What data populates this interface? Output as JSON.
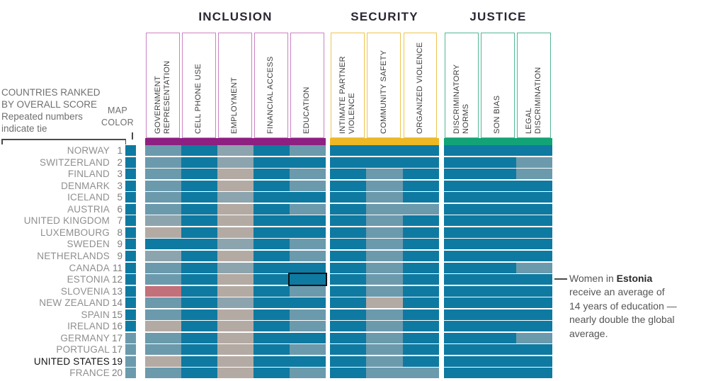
{
  "palette": {
    "teal": "#0e7aa1",
    "blue": "#6b9aad",
    "gray": "#8ca4ae",
    "tan": "#b4aaa4",
    "pink": "#c2707a"
  },
  "legend": {
    "note_lines": [
      "COUNTRIES RANKED",
      "BY OVERALL SCORE",
      "Repeated numbers",
      "indicate tie"
    ],
    "map_label_lines": [
      "MAP",
      "COLOR"
    ]
  },
  "annotation": {
    "pre": "Women in ",
    "bold": "Estonia",
    "rest": " receive an average of 14 years of education —nearly double the global average."
  },
  "chart_data": {
    "type": "heatmap",
    "note": "Countries ranked by overall score; cell shade encodes performance tier per indicator",
    "groups": [
      {
        "title": "INCLUSION",
        "bar_color": "#8e2082",
        "border_color": "#cb82c2",
        "columns": [
          "GOVERNMENT REPRESENTATION",
          "CELL PHONE USE",
          "EMPLOYMENT",
          "FINANCIAL ACCESS",
          "EDUCATION"
        ]
      },
      {
        "title": "SECURITY",
        "bar_color": "#edb824",
        "border_color": "#eec44f",
        "columns": [
          "INTIMATE PARTNER VIOLENCE",
          "COMMUNITY SAFETY",
          "ORGANIZED VIOLENCE"
        ]
      },
      {
        "title": "JUSTICE",
        "bar_color": "#12a377",
        "border_color": "#53b795",
        "columns": [
          "DISCRIMINATORY NORMS",
          "SON BIAS",
          "LEGAL DISCRIMINATION"
        ]
      }
    ],
    "rows": [
      {
        "country": "NORWAY",
        "rank": "1",
        "map": "teal",
        "emphasis": false,
        "cells": [
          "blue",
          "teal",
          "gray",
          "teal",
          "blue",
          "teal",
          "teal",
          "teal",
          "teal",
          "teal",
          "teal"
        ]
      },
      {
        "country": "SWITZERLAND",
        "rank": "2",
        "map": "teal",
        "emphasis": false,
        "cells": [
          "blue",
          "teal",
          "gray",
          "teal",
          "teal",
          "teal",
          "teal",
          "teal",
          "teal",
          "teal",
          "blue"
        ]
      },
      {
        "country": "FINLAND",
        "rank": "3",
        "map": "teal",
        "emphasis": false,
        "cells": [
          "blue",
          "teal",
          "tan",
          "teal",
          "blue",
          "teal",
          "blue",
          "teal",
          "teal",
          "teal",
          "blue"
        ]
      },
      {
        "country": "DENMARK",
        "rank": "3",
        "map": "teal",
        "emphasis": false,
        "cells": [
          "blue",
          "teal",
          "tan",
          "teal",
          "blue",
          "teal",
          "blue",
          "teal",
          "teal",
          "teal",
          "teal"
        ]
      },
      {
        "country": "ICELAND",
        "rank": "5",
        "map": "teal",
        "emphasis": false,
        "cells": [
          "blue",
          "teal",
          "gray",
          "teal",
          "teal",
          "teal",
          "blue",
          "teal",
          "teal",
          "teal",
          "teal"
        ]
      },
      {
        "country": "AUSTRIA",
        "rank": "6",
        "map": "teal",
        "emphasis": false,
        "cells": [
          "blue",
          "teal",
          "tan",
          "teal",
          "blue",
          "teal",
          "blue",
          "blue",
          "teal",
          "teal",
          "teal"
        ]
      },
      {
        "country": "UNITED KINGDOM",
        "rank": "7",
        "map": "teal",
        "emphasis": false,
        "cells": [
          "gray",
          "teal",
          "tan",
          "teal",
          "teal",
          "teal",
          "blue",
          "teal",
          "teal",
          "teal",
          "teal"
        ]
      },
      {
        "country": "LUXEMBOURG",
        "rank": "8",
        "map": "teal",
        "emphasis": false,
        "cells": [
          "tan",
          "teal",
          "tan",
          "teal",
          "teal",
          "teal",
          "blue",
          "teal",
          "teal",
          "teal",
          "teal"
        ]
      },
      {
        "country": "SWEDEN",
        "rank": "9",
        "map": "teal",
        "emphasis": false,
        "cells": [
          "teal",
          "teal",
          "gray",
          "teal",
          "blue",
          "teal",
          "blue",
          "teal",
          "teal",
          "teal",
          "teal"
        ]
      },
      {
        "country": "NETHERLANDS",
        "rank": "9",
        "map": "teal",
        "emphasis": false,
        "cells": [
          "gray",
          "teal",
          "tan",
          "teal",
          "blue",
          "teal",
          "blue",
          "teal",
          "teal",
          "teal",
          "teal"
        ]
      },
      {
        "country": "CANADA",
        "rank": "11",
        "map": "teal",
        "emphasis": false,
        "cells": [
          "blue",
          "teal",
          "gray",
          "teal",
          "teal",
          "teal",
          "blue",
          "teal",
          "teal",
          "teal",
          "blue"
        ]
      },
      {
        "country": "ESTONIA",
        "rank": "12",
        "map": "teal",
        "emphasis": false,
        "cells": [
          "blue",
          "teal",
          "tan",
          "teal",
          "teal",
          "teal",
          "blue",
          "teal",
          "teal",
          "teal",
          "teal"
        ]
      },
      {
        "country": "SLOVENIA",
        "rank": "13",
        "map": "teal",
        "emphasis": false,
        "cells": [
          "pink",
          "teal",
          "tan",
          "teal",
          "blue",
          "teal",
          "blue",
          "teal",
          "teal",
          "teal",
          "teal"
        ]
      },
      {
        "country": "NEW ZEALAND",
        "rank": "14",
        "map": "teal",
        "emphasis": false,
        "cells": [
          "blue",
          "teal",
          "gray",
          "teal",
          "teal",
          "teal",
          "tan",
          "teal",
          "teal",
          "teal",
          "teal"
        ]
      },
      {
        "country": "SPAIN",
        "rank": "15",
        "map": "teal",
        "emphasis": false,
        "cells": [
          "blue",
          "teal",
          "tan",
          "teal",
          "blue",
          "teal",
          "blue",
          "teal",
          "teal",
          "teal",
          "teal"
        ]
      },
      {
        "country": "IRELAND",
        "rank": "16",
        "map": "teal",
        "emphasis": false,
        "cells": [
          "tan",
          "teal",
          "tan",
          "teal",
          "blue",
          "teal",
          "blue",
          "teal",
          "teal",
          "teal",
          "teal"
        ]
      },
      {
        "country": "GERMANY",
        "rank": "17",
        "map": "blue",
        "emphasis": false,
        "cells": [
          "blue",
          "teal",
          "tan",
          "teal",
          "teal",
          "teal",
          "blue",
          "teal",
          "teal",
          "teal",
          "blue"
        ]
      },
      {
        "country": "PORTUGAL",
        "rank": "17",
        "map": "blue",
        "emphasis": false,
        "cells": [
          "blue",
          "teal",
          "tan",
          "teal",
          "blue",
          "teal",
          "blue",
          "teal",
          "teal",
          "teal",
          "teal"
        ]
      },
      {
        "country": "UNITED STATES",
        "rank": "19",
        "map": "blue",
        "emphasis": true,
        "cells": [
          "tan",
          "teal",
          "tan",
          "teal",
          "teal",
          "teal",
          "blue",
          "teal",
          "teal",
          "teal",
          "teal"
        ]
      },
      {
        "country": "FRANCE",
        "rank": "20",
        "map": "blue",
        "emphasis": false,
        "cells": [
          "blue",
          "teal",
          "tan",
          "teal",
          "blue",
          "teal",
          "blue",
          "blue",
          "teal",
          "teal",
          "teal"
        ]
      }
    ],
    "highlight": {
      "country": "ESTONIA",
      "column": "EDUCATION",
      "row_index": 11,
      "col_index": 4
    }
  }
}
